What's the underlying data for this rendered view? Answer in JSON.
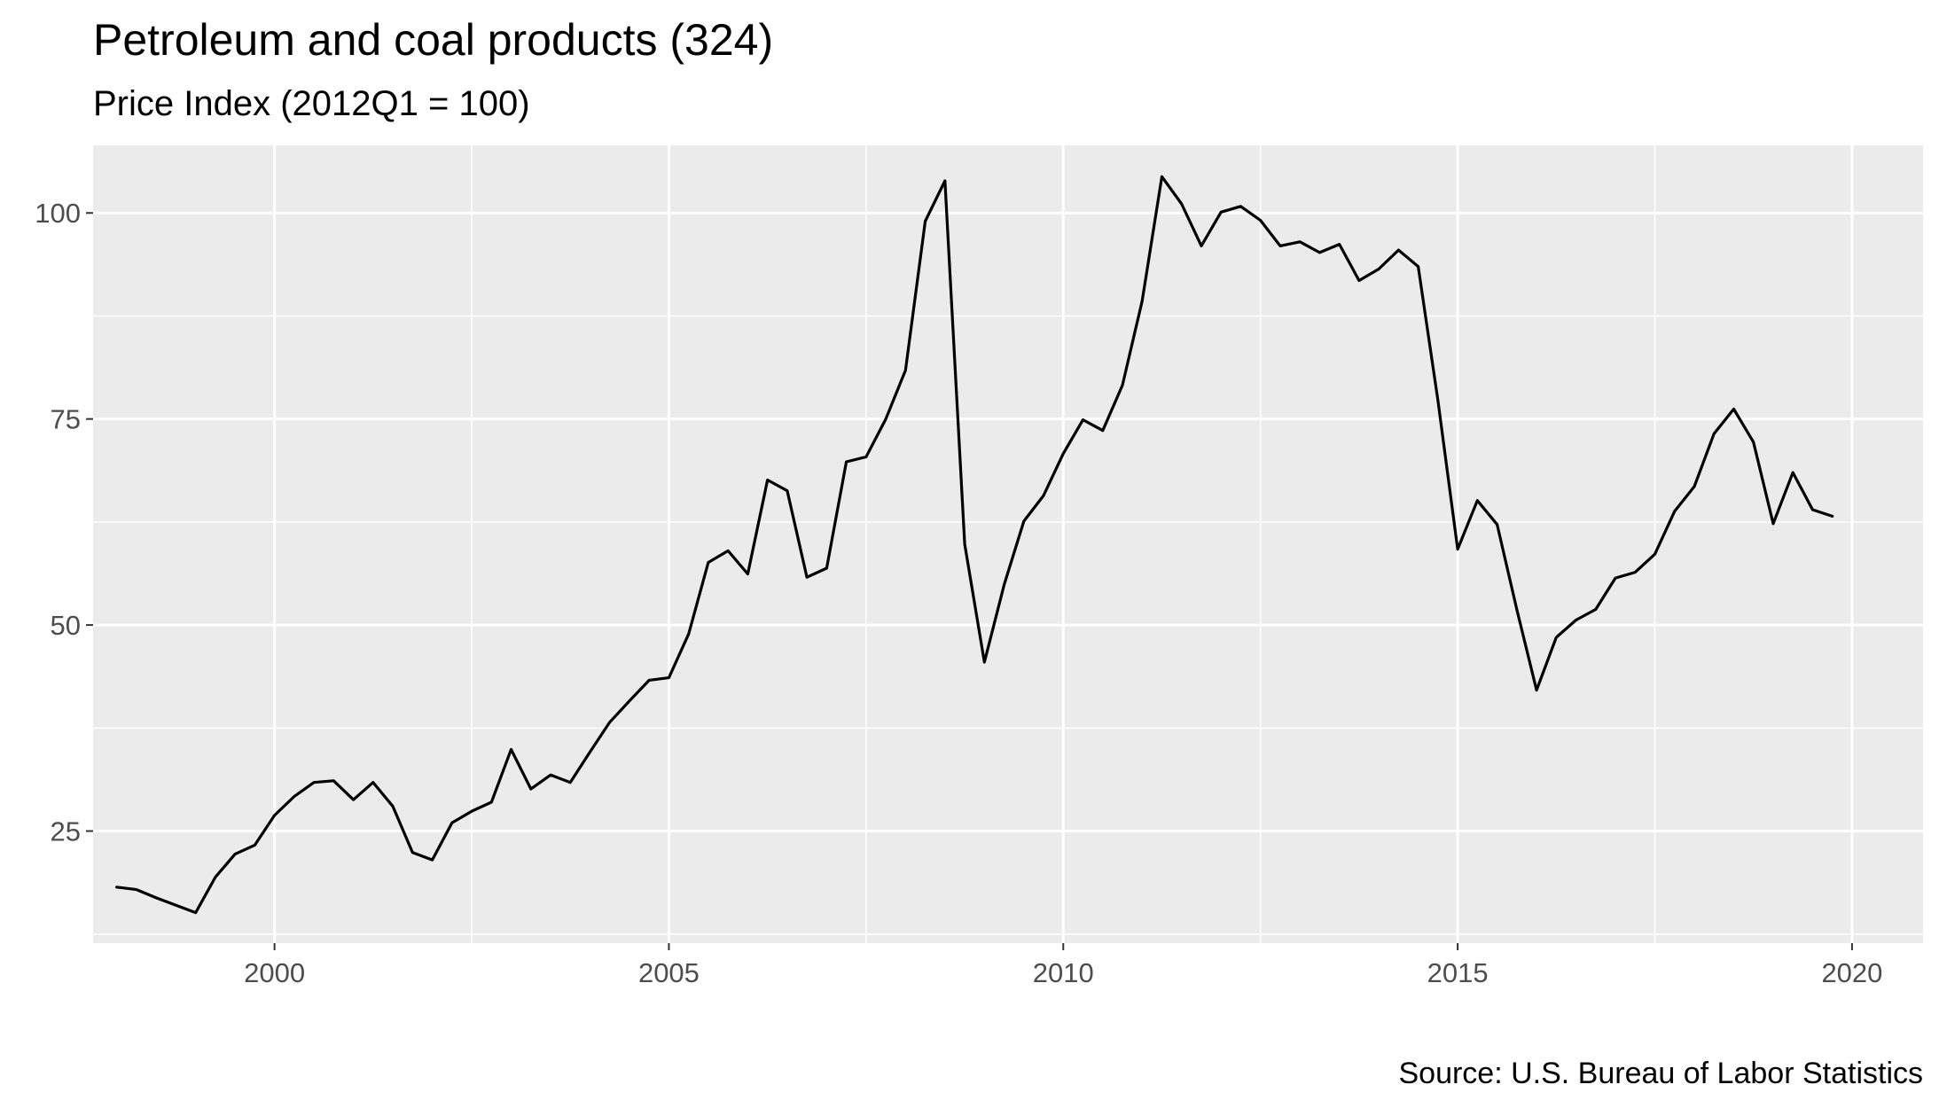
{
  "chart_data": {
    "type": "line",
    "title": "Petroleum and coal products (324)",
    "subtitle": "Price Index (2012Q1 = 100)",
    "caption": "Source: U.S. Bureau of Labor Statistics",
    "xlabel": "",
    "ylabel": "",
    "xlim": [
      1997.7,
      2020.9
    ],
    "ylim": [
      11.4,
      108.2
    ],
    "x_ticks": [
      2000,
      2005,
      2010,
      2015,
      2020
    ],
    "y_ticks": [
      25,
      50,
      75,
      100
    ],
    "grid": true,
    "line_color": "#000000",
    "panel_color": "#ebebeb",
    "grid_color": "#ffffff",
    "x": [
      1998.0,
      1998.25,
      1998.5,
      1998.75,
      1999.0,
      1999.25,
      1999.5,
      1999.75,
      2000.0,
      2000.25,
      2000.5,
      2000.75,
      2001.0,
      2001.25,
      2001.5,
      2001.75,
      2002.0,
      2002.25,
      2002.5,
      2002.75,
      2003.0,
      2003.25,
      2003.5,
      2003.75,
      2004.0,
      2004.25,
      2004.5,
      2004.75,
      2005.0,
      2005.25,
      2005.5,
      2005.75,
      2006.0,
      2006.25,
      2006.5,
      2006.75,
      2007.0,
      2007.25,
      2007.5,
      2007.75,
      2008.0,
      2008.25,
      2008.5,
      2008.75,
      2009.0,
      2009.25,
      2009.5,
      2009.75,
      2010.0,
      2010.25,
      2010.5,
      2010.75,
      2011.0,
      2011.25,
      2011.5,
      2011.75,
      2012.0,
      2012.25,
      2012.5,
      2012.75,
      2013.0,
      2013.25,
      2013.5,
      2013.75,
      2014.0,
      2014.25,
      2014.5,
      2014.75,
      2015.0,
      2015.25,
      2015.5,
      2015.75,
      2016.0,
      2016.25,
      2016.5,
      2016.75,
      2017.0,
      2017.25,
      2017.5,
      2017.75,
      2018.0,
      2018.25,
      2018.5,
      2018.75,
      2019.0,
      2019.25,
      2019.5,
      2019.75
    ],
    "series": [
      {
        "values": [
          18.2,
          17.9,
          16.9,
          16.0,
          15.1,
          19.4,
          22.2,
          23.3,
          26.9,
          29.2,
          30.9,
          31.1,
          28.8,
          30.9,
          28.0,
          22.4,
          21.5,
          26.0,
          27.4,
          28.5,
          34.9,
          30.1,
          31.8,
          30.9,
          34.6,
          38.2,
          40.8,
          43.3,
          43.6,
          48.9,
          57.6,
          59.0,
          56.2,
          67.6,
          66.3,
          55.8,
          56.9,
          69.8,
          70.4,
          75.0,
          80.9,
          99.0,
          103.9,
          59.8,
          45.5,
          54.9,
          62.6,
          65.7,
          70.8,
          74.9,
          73.6,
          79.1,
          89.3,
          104.4,
          101.1,
          96.0,
          100.1,
          100.8,
          99.1,
          96.0,
          96.5,
          95.2,
          96.2,
          91.8,
          93.2,
          95.5,
          93.5,
          77.2,
          59.2,
          65.1,
          62.2,
          51.9,
          42.1,
          48.5,
          50.6,
          51.9,
          55.7,
          56.4,
          58.6,
          63.8,
          66.8,
          73.2,
          76.2,
          72.2,
          62.3,
          68.5,
          64.0,
          63.2
        ]
      }
    ]
  }
}
